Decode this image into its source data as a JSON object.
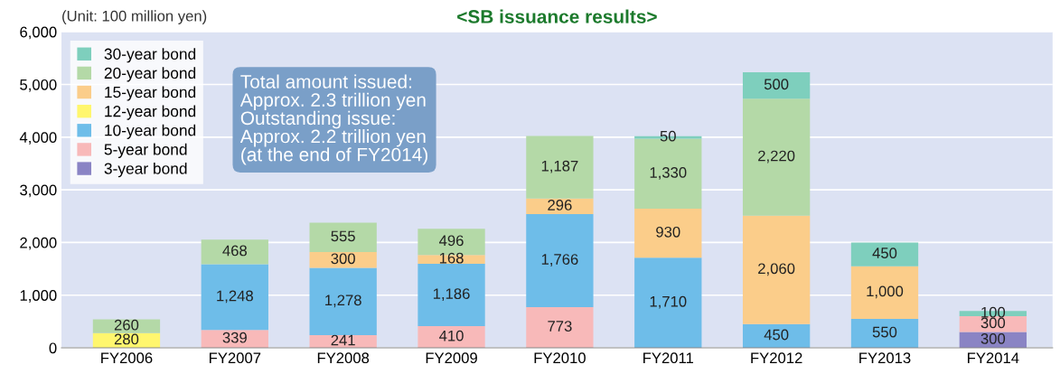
{
  "chart_data": {
    "type": "bar",
    "stacked": true,
    "title": "<SB issuance results>",
    "annotations": [
      "(Unit: 100 million yen)",
      "Total amount issued:\nApprox. 2.3 trillion yen\nOutstanding issue:\nApprox. 2.2 trillion yen\n(at the end of FY2014)"
    ],
    "categories": [
      "FY2006",
      "FY2007",
      "FY2008",
      "FY2009",
      "FY2010",
      "FY2011",
      "FY2012",
      "FY2013",
      "FY2014"
    ],
    "series": [
      {
        "name": "3-year bond",
        "color": "#8a84c4",
        "values": [
          null,
          null,
          null,
          null,
          null,
          null,
          null,
          null,
          300
        ],
        "value_labels": [
          null,
          null,
          null,
          null,
          null,
          null,
          null,
          null,
          "300"
        ]
      },
      {
        "name": "5-year bond",
        "color": "#f8b9b9",
        "values": [
          null,
          339,
          241,
          410,
          773,
          null,
          null,
          null,
          300
        ],
        "value_labels": [
          null,
          "339",
          "241",
          "410",
          "773",
          null,
          null,
          null,
          "300"
        ]
      },
      {
        "name": "10-year bond",
        "color": "#6ebde9",
        "values": [
          null,
          1248,
          1278,
          1186,
          1766,
          1710,
          450,
          550,
          null
        ],
        "value_labels": [
          null,
          "1,248",
          "1,278",
          "1,186",
          "1,766",
          "1,710",
          "450",
          "550",
          null
        ]
      },
      {
        "name": "12-year bond",
        "color": "#fff66e",
        "values": [
          280,
          null,
          null,
          null,
          null,
          null,
          null,
          null,
          null
        ],
        "value_labels": [
          "280",
          null,
          null,
          null,
          null,
          null,
          null,
          null,
          null
        ]
      },
      {
        "name": "15-year bond",
        "color": "#fbcd8a",
        "values": [
          null,
          null,
          300,
          168,
          296,
          930,
          2060,
          1000,
          null
        ],
        "value_labels": [
          null,
          null,
          "300",
          "168",
          "296",
          "930",
          "2,060",
          "1,000",
          null
        ]
      },
      {
        "name": "20-year bond",
        "color": "#b4d9a7",
        "values": [
          260,
          468,
          555,
          496,
          1187,
          1330,
          2220,
          null,
          null
        ],
        "value_labels": [
          "260",
          "468",
          "555",
          "496",
          "1,187",
          "1,330",
          "2,220",
          null,
          null
        ]
      },
      {
        "name": "30-year bond",
        "color": "#7ecfbd",
        "values": [
          null,
          null,
          null,
          null,
          null,
          50,
          500,
          450,
          100
        ],
        "value_labels": [
          null,
          null,
          null,
          null,
          null,
          "50",
          "500",
          "450",
          "100"
        ]
      }
    ],
    "ylim": [
      0,
      6000
    ],
    "yticks": [
      0,
      {
        "value": 1000,
        "label": "1,000"
      },
      {
        "value": 2000,
        "label": "2,000"
      },
      {
        "value": 3000,
        "label": "3,000"
      },
      {
        "value": 4000,
        "label": "4,000"
      },
      {
        "value": 5000,
        "label": "5,000"
      },
      {
        "value": 6000,
        "label": "6,000"
      }
    ],
    "grid": "y",
    "legend": "top left"
  }
}
